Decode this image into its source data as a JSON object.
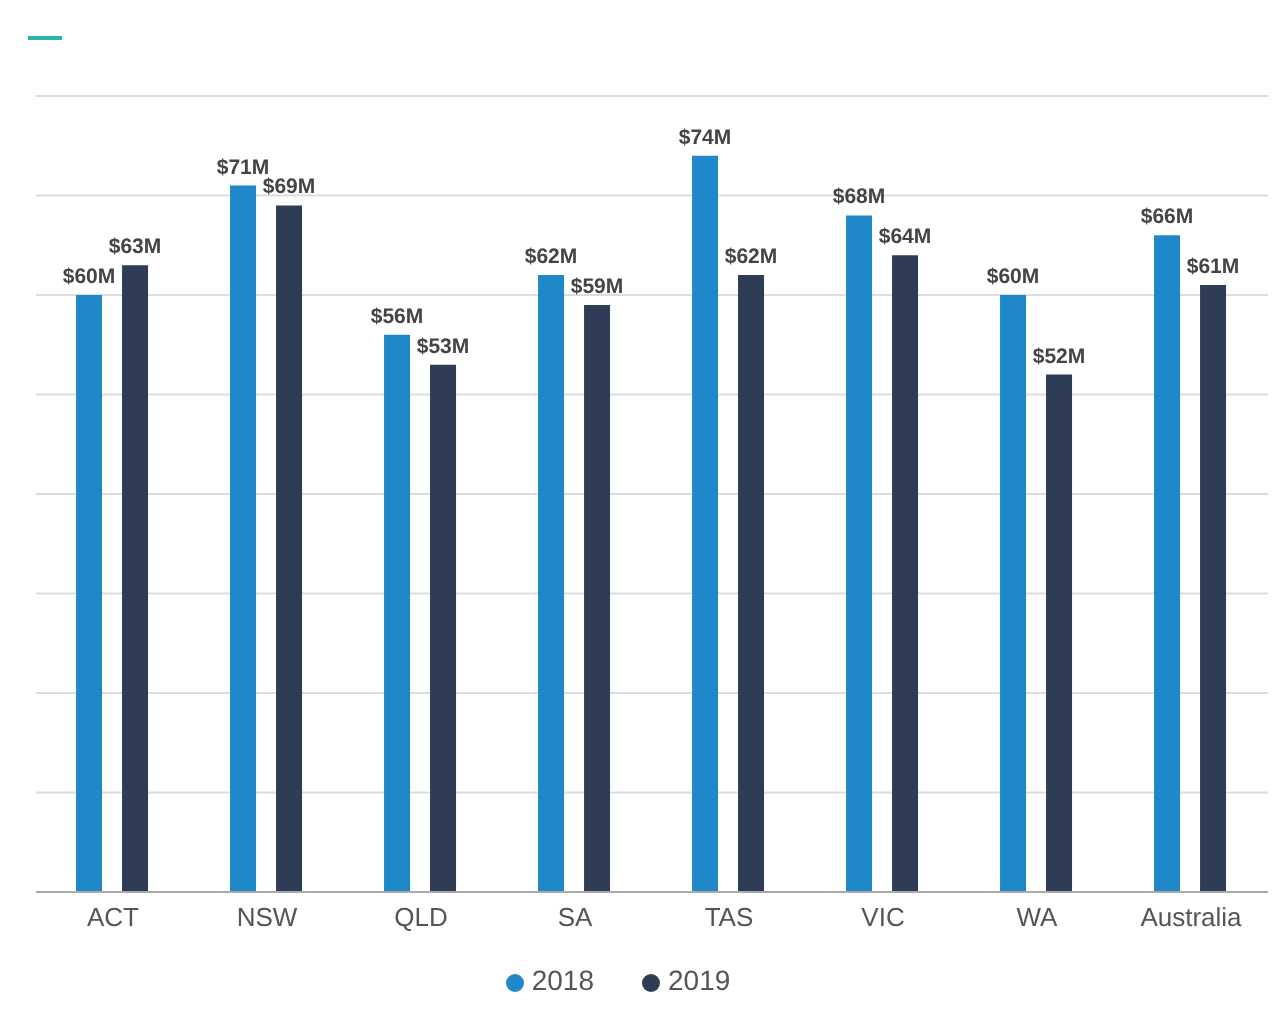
{
  "chart_data": {
    "type": "bar",
    "categories": [
      "ACT",
      "NSW",
      "QLD",
      "SA",
      "TAS",
      "VIC",
      "WA",
      "Australia"
    ],
    "series": [
      {
        "name": "2018",
        "color": "#1e88c8",
        "values": [
          60,
          71,
          56,
          62,
          74,
          68,
          60,
          66
        ],
        "value_labels": [
          "$60M",
          "$71M",
          "$56M",
          "$62M",
          "$74M",
          "$68M",
          "$60M",
          "$66M"
        ]
      },
      {
        "name": "2019",
        "color": "#2e3d55",
        "values": [
          63,
          69,
          53,
          59,
          62,
          64,
          52,
          61
        ],
        "value_labels": [
          "$63M",
          "$69M",
          "$53M",
          "$59M",
          "$62M",
          "$64M",
          "$52M",
          "$61M"
        ]
      }
    ],
    "ylim": [
      0,
      80
    ],
    "yticks": [
      {
        "value": 0,
        "label": null
      },
      {
        "value": 10,
        "label": null
      },
      {
        "value": 20,
        "label": null
      },
      {
        "value": 30,
        "label": null
      },
      {
        "value": 40,
        "label": null
      },
      {
        "value": 50,
        "label": null
      },
      {
        "value": 60,
        "label": null
      },
      {
        "value": 70,
        "label": null
      }
    ],
    "grid": "y",
    "tick_labels": "x",
    "legend": "bottom"
  }
}
